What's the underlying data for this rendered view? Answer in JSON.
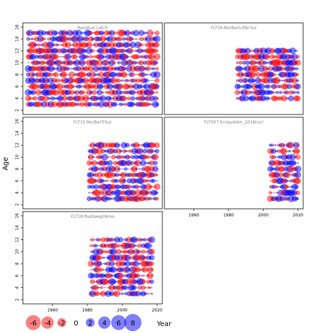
{
  "chart_data": {
    "type": "scatter",
    "title": "",
    "xlabel": "Year",
    "ylabel": "Age",
    "xlim": [
      1943,
      2023
    ],
    "ylim": [
      1.3,
      16.7
    ],
    "x_ticks": [
      1960,
      1980,
      2000,
      2020
    ],
    "y_ticks": [
      2,
      4,
      6,
      8,
      10,
      12,
      14,
      16
    ],
    "colors": {
      "positive": "#0000ff",
      "negative": "#ff0000"
    },
    "legend": {
      "placement": "bottom",
      "entries": [
        {
          "label": "-6",
          "value": -6
        },
        {
          "label": "-4",
          "value": -4
        },
        {
          "label": "-2",
          "value": -2
        },
        {
          "label": "0",
          "value": 0
        },
        {
          "label": "2",
          "value": 2
        },
        {
          "label": "4",
          "value": 4
        },
        {
          "label": "6",
          "value": 6
        },
        {
          "label": "8",
          "value": 8
        }
      ]
    },
    "panels": [
      {
        "title": "Residual catch",
        "years": [
          1946,
          2020
        ],
        "ages": [
          3,
          15
        ]
      },
      {
        "title": "FLT16:NorBarLofAcSur",
        "years": [
          1985,
          2020
        ],
        "ages": [
          4,
          12
        ]
      },
      {
        "title": "FLT15:NorBarTrSur",
        "years": [
          1981,
          2020
        ],
        "ages": [
          3,
          12
        ]
      },
      {
        "title": "FLT007:Ecosystem_2018corr",
        "years": [
          2004,
          2020
        ],
        "ages": [
          3,
          12
        ]
      },
      {
        "title": "FLT18:RusSweptArea",
        "years": [
          1982,
          2017
        ],
        "ages": [
          3,
          12
        ]
      }
    ]
  }
}
